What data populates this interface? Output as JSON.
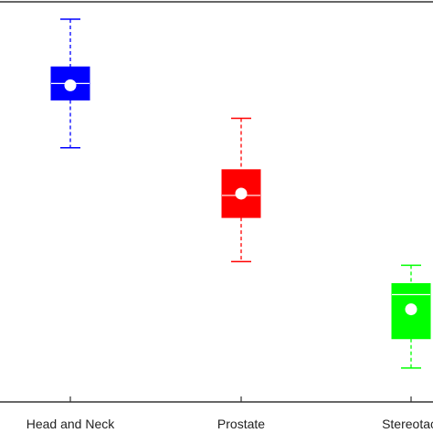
{
  "chart_data": {
    "type": "box",
    "title": "",
    "xlabel": "",
    "ylabel": "",
    "categories": [
      "Head and Neck",
      "Prostate",
      "Stereotact"
    ],
    "ylim": [
      0,
      100
    ],
    "grid": false,
    "legend": "none",
    "boxes": [
      {
        "category": "Head and Neck",
        "color": "#0000ff",
        "whisker_low": 65,
        "q1": 78,
        "median": 82.5,
        "q3": 87,
        "whisker_high": 100,
        "mean": 82
      },
      {
        "category": "Prostate",
        "color": "#ff0000",
        "whisker_low": 34,
        "q1": 46,
        "median": 52,
        "q3": 59,
        "whisker_high": 73,
        "mean": 52.5
      },
      {
        "category": "Stereotact",
        "color": "#00ff00",
        "whisker_low": 5,
        "q1": 13,
        "median": 25,
        "q3": 28,
        "whisker_high": 33,
        "mean": 21
      }
    ]
  }
}
